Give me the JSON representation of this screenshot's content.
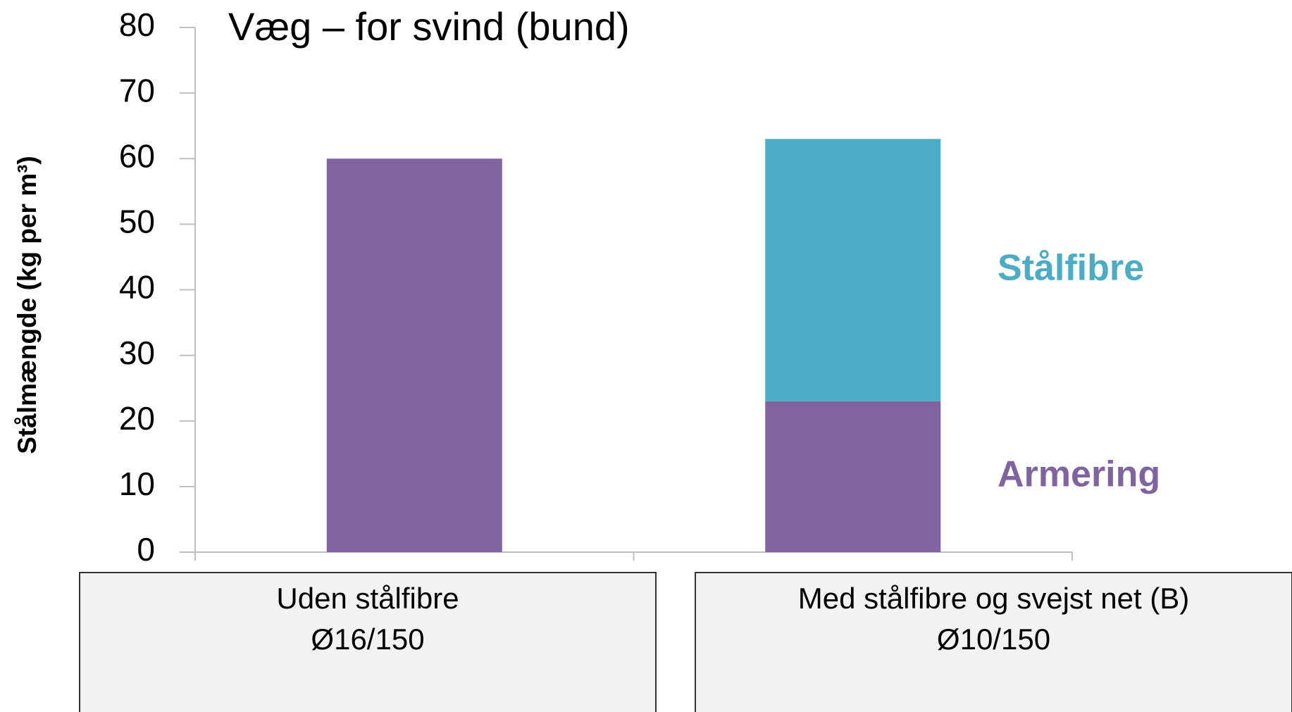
{
  "chart_data": {
    "type": "stacked_bar",
    "title": "Væg – for svind (bund)",
    "y_label": "Stålmængde (kg per m³)",
    "categories": [
      "Uden stålfibre",
      "Med stålfibre og svejst net (B)"
    ],
    "sublabels": [
      "Ø16/150",
      "Ø10/150"
    ],
    "series": [
      {
        "name": "Armering",
        "color": "#8064a2",
        "values": [
          60,
          23
        ]
      },
      {
        "name": "Stålfibre",
        "color": "#4bacc6",
        "values": [
          null,
          40
        ]
      }
    ],
    "ylim": [
      0,
      80
    ],
    "yticks": [
      0,
      10,
      20,
      30,
      40,
      50,
      60,
      70,
      80
    ],
    "legend": "right"
  }
}
